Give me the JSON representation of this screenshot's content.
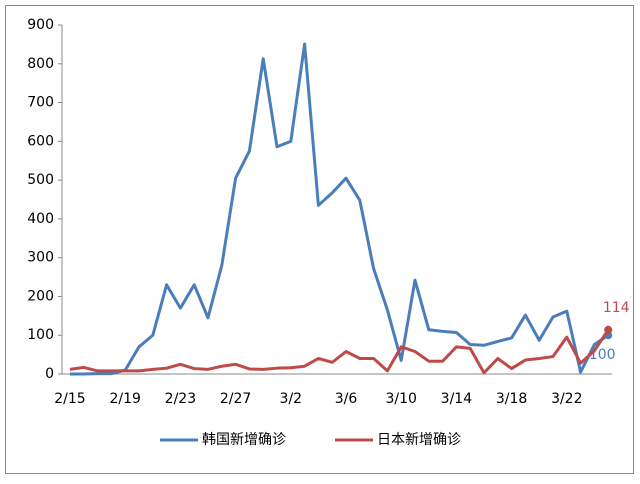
{
  "chart_data": {
    "type": "line",
    "categories": [
      "2/15",
      null,
      null,
      null,
      "2/19",
      null,
      null,
      null,
      "2/23",
      null,
      null,
      null,
      "2/27",
      null,
      null,
      null,
      "3/2",
      null,
      null,
      null,
      "3/6",
      null,
      null,
      null,
      "3/10",
      null,
      null,
      null,
      "3/14",
      null,
      null,
      null,
      "3/18",
      null,
      null,
      null,
      "3/22",
      null,
      null,
      null
    ],
    "series": [
      {
        "name": "韩国新增确诊",
        "color": "#4a7ebb",
        "values": [
          0,
          0,
          1,
          1,
          10,
          70,
          100,
          230,
          170,
          230,
          145,
          280,
          505,
          575,
          813,
          586,
          600,
          851,
          435,
          467,
          505,
          448,
          272,
          165,
          35,
          242,
          114,
          110,
          107,
          76,
          74,
          84,
          93,
          152,
          87,
          147,
          162,
          5,
          76,
          100
        ]
      },
      {
        "name": "日本新增确诊",
        "color": "#be4b48",
        "values": [
          12,
          17,
          8,
          8,
          8,
          8,
          12,
          15,
          25,
          14,
          12,
          20,
          25,
          13,
          12,
          15,
          16,
          20,
          40,
          30,
          58,
          40,
          40,
          8,
          70,
          58,
          33,
          33,
          70,
          66,
          3,
          40,
          14,
          36,
          40,
          45,
          95,
          28,
          60,
          114
        ]
      }
    ],
    "ylim": [
      0,
      900
    ],
    "yticks": [
      0,
      100,
      200,
      300,
      400,
      500,
      600,
      700,
      800,
      900
    ],
    "legend": "bottom"
  }
}
